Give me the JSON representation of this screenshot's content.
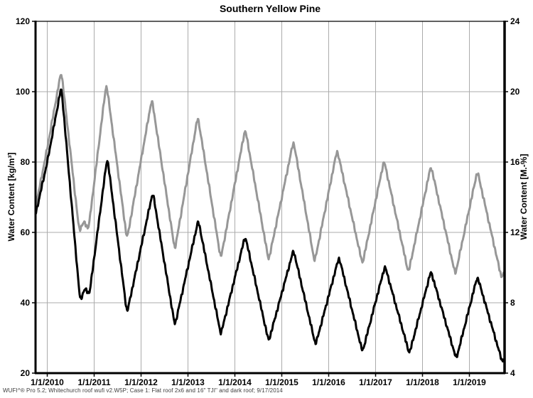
{
  "title": "Southern Yellow Pine",
  "footer": "WUFI^® Pro 5.2; Whitechurch roof wufi v2.W5P; Case 1: Flat roof 2x6 and 16\" TJI\" and dark roof; 9/17/2014",
  "chart_data": {
    "type": "line",
    "title": "Southern Yellow Pine",
    "legend_position": "none",
    "grid": true,
    "background": "#ffffff",
    "grid_color": "#ababab",
    "x_axis": {
      "tick_labels": [
        "1/1/2010",
        "1/1/2011",
        "1/1/2012",
        "1/1/2013",
        "1/1/2014",
        "1/1/2015",
        "1/1/2016",
        "1/1/2017",
        "1/1/2018",
        "1/1/2019"
      ],
      "tick_years": [
        2010,
        2011,
        2012,
        2013,
        2014,
        2015,
        2016,
        2017,
        2018,
        2019
      ],
      "range_years": [
        2009.75,
        2019.75
      ]
    },
    "y_left": {
      "label": "Water Content [kg/m³]",
      "ticks": [
        120,
        100,
        80,
        60,
        40,
        20
      ],
      "range": [
        20,
        120
      ]
    },
    "y_right": {
      "label": "Water Content [M.-%]",
      "ticks": [
        24,
        20,
        16,
        12,
        8,
        4
      ],
      "range": [
        4,
        24
      ]
    },
    "series": [
      {
        "id": "gray-line",
        "color": "#979797",
        "width": 3,
        "points": [
          [
            2009.75,
            67
          ],
          [
            2010.0,
            84
          ],
          [
            2010.3,
            106
          ],
          [
            2010.68,
            60.5
          ],
          [
            2010.78,
            63
          ],
          [
            2010.88,
            61
          ],
          [
            2011.26,
            102.5
          ],
          [
            2011.7,
            58
          ],
          [
            2012.23,
            98
          ],
          [
            2012.72,
            55
          ],
          [
            2013.21,
            93
          ],
          [
            2013.7,
            52.5
          ],
          [
            2014.22,
            89.5
          ],
          [
            2014.72,
            52
          ],
          [
            2015.25,
            86
          ],
          [
            2015.7,
            51.5
          ],
          [
            2016.18,
            83.5
          ],
          [
            2016.72,
            51
          ],
          [
            2017.18,
            80.5
          ],
          [
            2017.7,
            48.5
          ],
          [
            2018.18,
            79
          ],
          [
            2018.7,
            48
          ],
          [
            2019.17,
            77.5
          ],
          [
            2019.68,
            47.3
          ],
          [
            2019.75,
            48.5
          ]
        ]
      },
      {
        "id": "black-line",
        "color": "#000000",
        "width": 3,
        "points": [
          [
            2009.75,
            65
          ],
          [
            2010.0,
            80
          ],
          [
            2010.3,
            101.5
          ],
          [
            2010.7,
            40.5
          ],
          [
            2010.8,
            44
          ],
          [
            2010.9,
            42.5
          ],
          [
            2011.28,
            81.5
          ],
          [
            2011.7,
            37
          ],
          [
            2012.25,
            71.5
          ],
          [
            2012.72,
            33.5
          ],
          [
            2013.22,
            63.5
          ],
          [
            2013.7,
            31
          ],
          [
            2014.22,
            59
          ],
          [
            2014.72,
            29
          ],
          [
            2015.25,
            55
          ],
          [
            2015.72,
            28
          ],
          [
            2016.22,
            53
          ],
          [
            2016.72,
            26
          ],
          [
            2017.2,
            50.5
          ],
          [
            2017.72,
            25.5
          ],
          [
            2018.18,
            49
          ],
          [
            2018.72,
            24
          ],
          [
            2019.17,
            47.5
          ],
          [
            2019.7,
            23.2
          ],
          [
            2019.75,
            24.3
          ]
        ]
      }
    ]
  }
}
